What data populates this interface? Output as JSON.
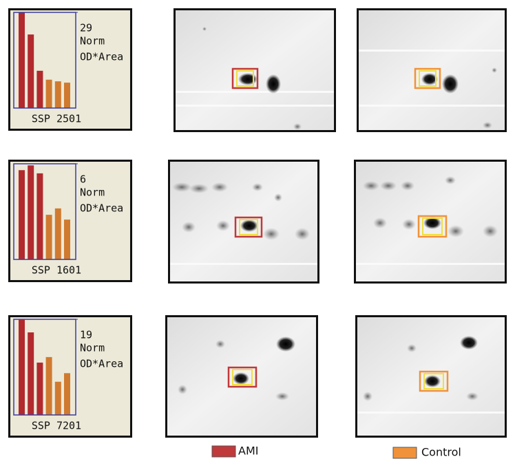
{
  "chart_data": [
    {
      "type": "bar",
      "title": "SSP 2501",
      "ylabel": [
        "Norm",
        "OD*Area"
      ],
      "values": [
        29,
        22.3,
        11.3,
        8.6,
        8.1,
        7.7
      ],
      "colors": [
        "#b22a2e",
        "#b22a2e",
        "#b22a2e",
        "#d07a30",
        "#d07a30",
        "#d07a30"
      ],
      "ylim": [
        0,
        29
      ],
      "yticks": [
        29
      ]
    },
    {
      "type": "bar",
      "title": "SSP 1601",
      "ylabel": [
        "Norm",
        "OD*Area"
      ],
      "values": [
        5.6,
        5.9,
        5.4,
        2.8,
        3.2,
        2.5
      ],
      "colors": [
        "#b22a2e",
        "#b22a2e",
        "#b22a2e",
        "#d07a30",
        "#d07a30",
        "#d07a30"
      ],
      "ylim": [
        0,
        6
      ],
      "yticks": [
        6
      ]
    },
    {
      "type": "bar",
      "title": "SSP 7201",
      "ylabel": [
        "Norm",
        "OD*Area"
      ],
      "values": [
        18.9,
        16.4,
        10.4,
        11.5,
        6.6,
        8.3
      ],
      "colors": [
        "#b22a2e",
        "#b22a2e",
        "#b22a2e",
        "#d07a30",
        "#d07a30",
        "#d07a30"
      ],
      "ylim": [
        0,
        19
      ],
      "yticks": [
        19
      ]
    }
  ],
  "legend": [
    {
      "label": "AMI",
      "color": "#c0393b"
    },
    {
      "label": "Control",
      "color": "#f0923a"
    }
  ]
}
